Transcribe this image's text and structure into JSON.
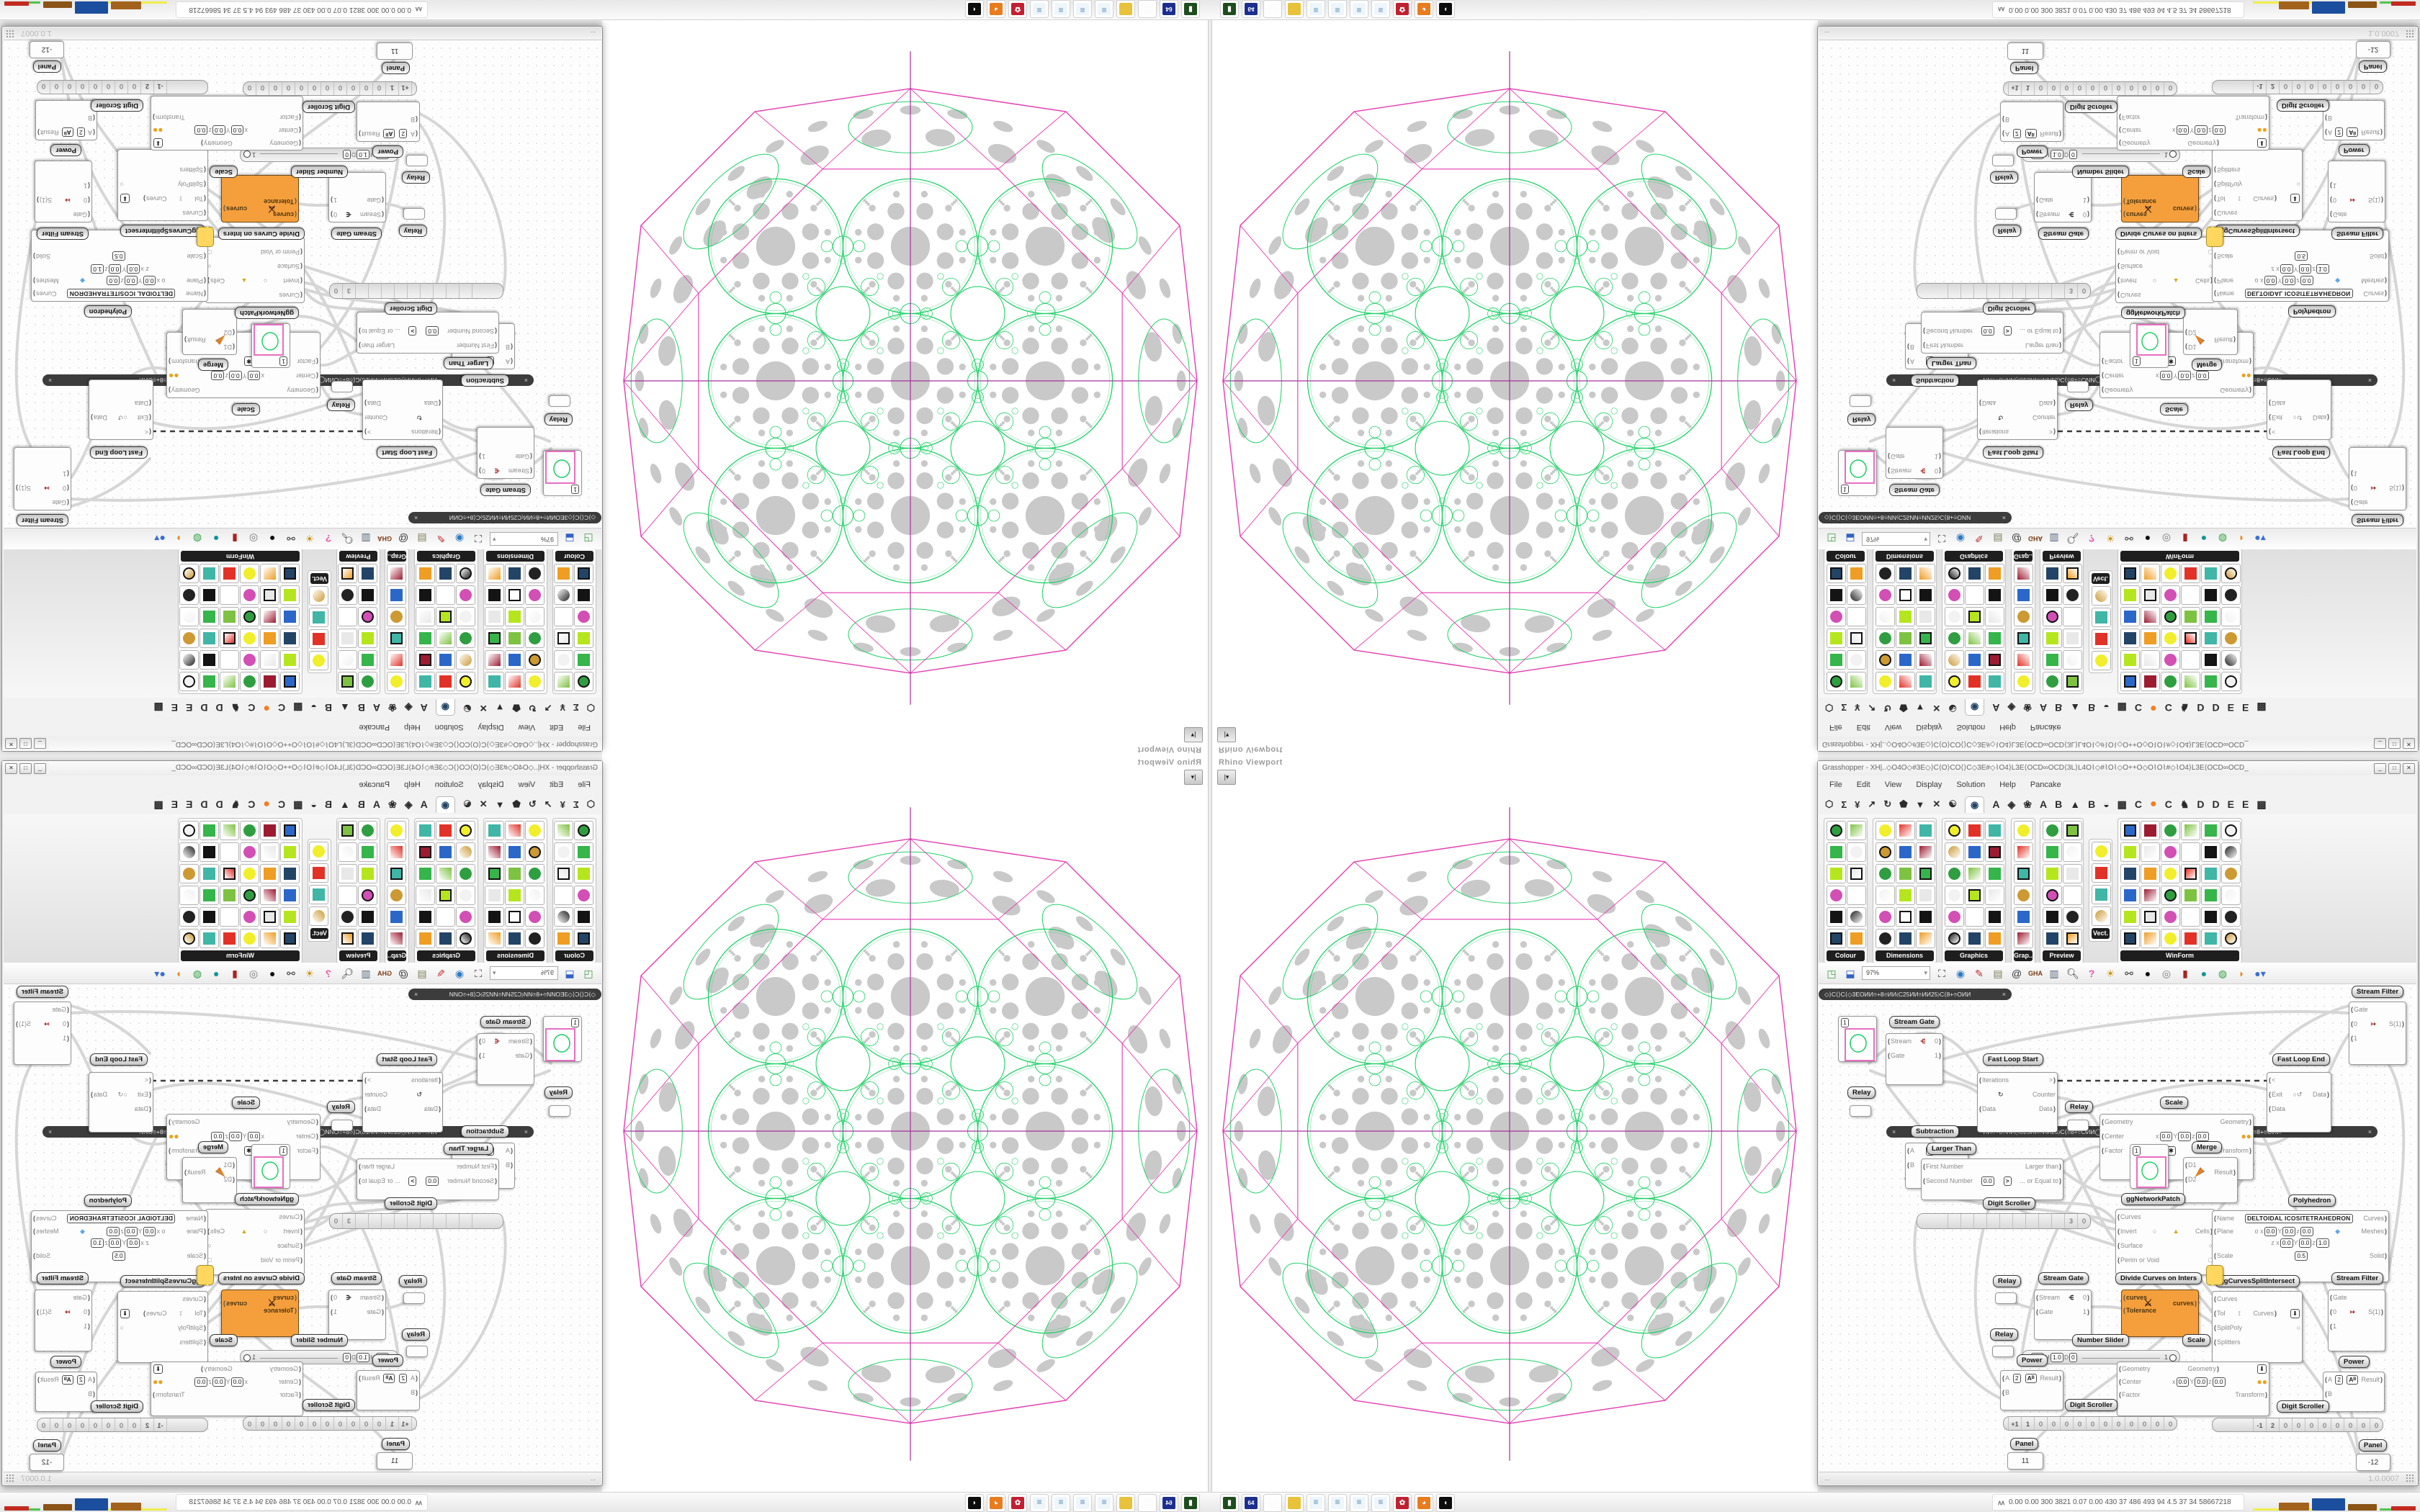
{
  "colors": {
    "selected_component": "#f49f3c",
    "sphere_wireframe": "#e53cb2",
    "sphere_gasket": "#21d168",
    "sphere_dots": "#c9c9c9",
    "sphere_axis": "#a8309b",
    "group_bar": "#3c3c3c",
    "balloon": "#ffd75e"
  },
  "viewport": {
    "tab_label": "Rhino Viewport",
    "collapse_button": "|▾"
  },
  "window": {
    "title": "Grasshopper - XH|..◇O4O◇#3E◇⟩C⟨O⟩CO⟨⟩C◇3E#◇⌇O4⟩L3E⟨OCD∞OCD⟨3L⟩L4O⌇◇#⌇O⌇◇O++O◇O⌇O⌇#◇⌇O4⟩L3E⟨OCD∞OCD_",
    "menus": [
      "File",
      "Edit",
      "View",
      "Display",
      "Solution",
      "Help",
      "Pancake"
    ],
    "zoom_level": "97%",
    "tab_glyphs": [
      "⬡",
      "Σ",
      "¥",
      "↗",
      "↻",
      "⬟",
      "▼",
      "✕",
      "☯",
      "◉"
    ],
    "tab_letters": [
      "A",
      "◈",
      "❀",
      "A",
      "B",
      "▲",
      "B",
      "◒",
      "▦",
      "C",
      "●",
      "C",
      "♞",
      "D",
      "D",
      "E",
      "E",
      "▩"
    ],
    "palette_groups": [
      {
        "label": "Colour",
        "cols": 2,
        "rows": 6
      },
      {
        "label": "Dimensions",
        "cols": 3,
        "rows": 6
      },
      {
        "label": "Graphics",
        "cols": 3,
        "rows": 6
      },
      {
        "label": "Grap..",
        "cols": 1,
        "rows": 6
      },
      {
        "label": "Preview",
        "cols": 2,
        "rows": 6
      },
      {
        "label": "Vect.",
        "cols": 1,
        "rows": 4
      },
      {
        "label": "WinForm",
        "cols": 6,
        "rows": 6
      }
    ],
    "status_left": "...",
    "status_right": "1.0.0007"
  },
  "groups": {
    "bar1": "◇⟩C⟨⟩C⟨◇3EOИИ⌾+8⌾ИИ⟨C25ИИ⌾ИИ25⟩C⟨8+⌾OИИ",
    "bar2": "ИИ⌾+8⌾ИИ⟨⟩C25ИИ⌾ИИ25⟩C⟨⌾8+⌾OИИ◯3E◇⟩C⟨⌾⟩C⌾⟨⟩C◇3EOИИO⌾+8⌾ИИ⟨⟩C25ИИ⌾ИИ25⟩C⟨⌾8+⌾OИИ",
    "close": "×"
  },
  "nodes": {
    "streamGate": {
      "label": "Stream Gate",
      "in1": "Stream",
      "in2": "Gate",
      "out1": "0",
      "out2": "1"
    },
    "streamFilter": {
      "label": "Stream Filter",
      "in1": "Gate",
      "in2": "0",
      "in3": "1",
      "out1": "S(1)"
    },
    "fastLoopStart": {
      "label": "Fast Loop Start",
      "in1": "Iterations",
      "out1": ">",
      "mid": "Counter",
      "in2": "Data",
      "out2": "Data"
    },
    "fastLoopEnd": {
      "label": "Fast Loop End",
      "in1": "<",
      "in2": "Exit",
      "in3": "Data",
      "out1": "Data"
    },
    "relay": {
      "label": "Relay"
    },
    "subtraction": {
      "label": "Subtraction",
      "in1": "A",
      "in2": "B",
      "val": "1",
      "out": "Result",
      "icon": "−"
    },
    "scale": {
      "label": "Scale",
      "in1": "Geometry",
      "in2": "Center",
      "x": "x",
      "y": "Y",
      "z": "z",
      "v0": "0.0",
      "in3": "Factor",
      "factor_icon": "✱",
      "out1": "Geometry",
      "out2": "Transform"
    },
    "largerThan": {
      "label": "Larger Than",
      "in1": "First Number",
      "in2": "Second Number",
      "val": "0.0",
      "icon": ">",
      "out1": "Larger than",
      "out2": "... or Equal to"
    },
    "merge": {
      "label": "Merge",
      "in1": "D1",
      "in2": "D2",
      "out": "Result"
    },
    "panelImage": {
      "val": "1"
    },
    "ggNetworkPatch": {
      "label": "ggNetworkPatch",
      "in1": "Curves",
      "in2": "Invert",
      "in3": "Surface",
      "in4": "Perim or Void",
      "out": "Cells"
    },
    "polyhedron": {
      "label": "Polyhedron",
      "in1": "Name",
      "name": "DELTOIDAL ICOSITETRAHEDRON",
      "in2": "Plane",
      "o": "o",
      "z": "z",
      "v0": "0.0",
      "v1": "1.0",
      "in3": "Scale",
      "scale": "0.5",
      "out1": "Curves",
      "out2": "Meshes",
      "out3": "Solid"
    },
    "digitScroller": {
      "label": "Digit Scroller",
      "ds1": [
        "",
        "",
        "",
        "",
        "",
        "",
        "",
        "",
        "",
        "3",
        "0"
      ],
      "ds2": [
        "+1",
        "1",
        "0",
        "0",
        "0",
        "0",
        "0",
        "0",
        "0",
        "0",
        "0",
        "0",
        "0"
      ],
      "ds3": [
        "-1",
        "2",
        "0",
        "0",
        "0",
        "0",
        "0",
        "0",
        "0",
        "0"
      ]
    },
    "divideCurves": {
      "label": "Divide Curves on Inters",
      "in1": "curves",
      "in2": "Tolerance",
      "out": "curves"
    },
    "ggCurvesSplit": {
      "label": "ggCurvesSplitIntersect",
      "in1": "Curves",
      "in2": "Tol",
      "in3": "SplitPoly",
      "out1": "Curves",
      "out2": "Splitters"
    },
    "numberSlider": {
      "label": "Number Slider",
      "m": "m",
      "v1": "0.0",
      "M": "M",
      "v2": "1.0",
      "d": "D",
      "v3": "0",
      "end": "1"
    },
    "power": {
      "label": "Power",
      "in1": "A",
      "val": "2",
      "in2": "B",
      "out": "Result",
      "icon": "Aᴮ"
    },
    "panel": {
      "label": "Panel",
      "p1": "11",
      "p2": "-12"
    }
  },
  "taskbar": {
    "numbers": "0.00 0.00 300 3821 0.07 0.00 430 37 486 493 94 4.5 37 34 58667218",
    "chevron": "∧∧",
    "icons": [
      "cassette",
      "floppy-64",
      "blank",
      "folder",
      "notepad",
      "notepad",
      "notepad",
      "notepad",
      "red-badge",
      "firefox",
      "rhino"
    ]
  }
}
